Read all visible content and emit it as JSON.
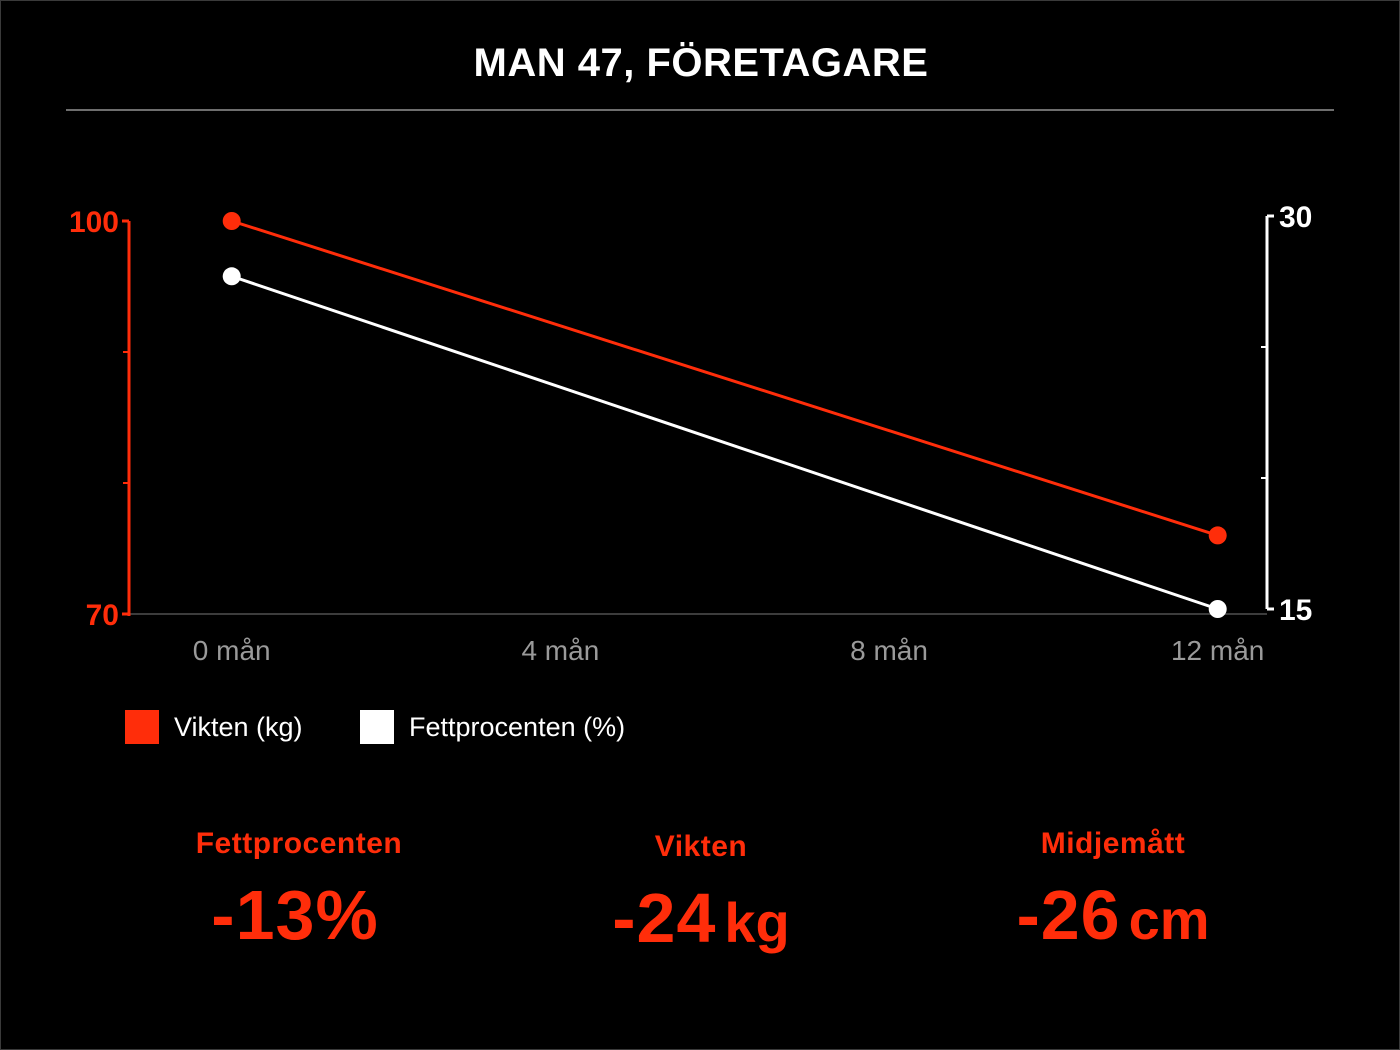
{
  "title": "MAN 47, FÖRETAGARE",
  "colors": {
    "background": "#000000",
    "weight": "#ff2d0a",
    "fat": "#ffffff",
    "axis_gray": "#9a9a9a",
    "rule": "#6e6e6e"
  },
  "chart_data": {
    "type": "line",
    "x": [
      0,
      12
    ],
    "x_ticks": [
      {
        "value": 0,
        "label": "0 mån"
      },
      {
        "value": 4,
        "label": "4 mån"
      },
      {
        "value": 8,
        "label": "8 mån"
      },
      {
        "value": 12,
        "label": "12 mån"
      }
    ],
    "xlim": [
      -1.25,
      12.6
    ],
    "series": [
      {
        "name": "Vikten (kg)",
        "axis": "left",
        "color": "#ff2d0a",
        "values": [
          100,
          76
        ]
      },
      {
        "name": "Fettprocenten (%)",
        "axis": "right",
        "color": "#ffffff",
        "values": [
          27.7,
          15
        ]
      }
    ],
    "y_left": {
      "ylim": [
        70,
        100
      ],
      "tick_labels": [
        "70",
        "100"
      ],
      "minor_ticks": [
        80,
        90
      ]
    },
    "y_right": {
      "ylim": [
        15,
        30
      ],
      "tick_labels": [
        "15",
        "30"
      ],
      "minor_ticks": [
        20,
        25
      ]
    },
    "grid": false,
    "legend": "bottom-left"
  },
  "stats": [
    {
      "label": "Fettprocenten",
      "value": "-13%",
      "unit": ""
    },
    {
      "label": "Vikten",
      "value": "-24",
      "unit": "kg"
    },
    {
      "label": "Midjemått",
      "value": "-26",
      "unit": "cm"
    }
  ]
}
